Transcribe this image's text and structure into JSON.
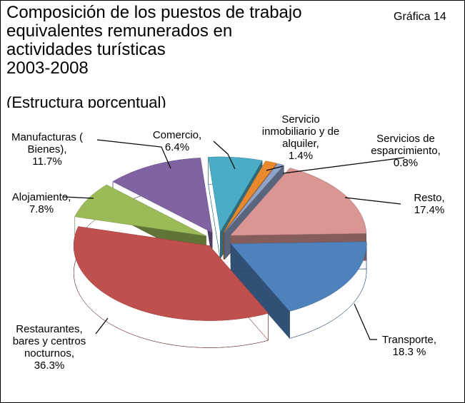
{
  "chart_data": {
    "type": "pie",
    "title": "Composición de los puestos de trabajo equivalentes remunerados en actividades turísticas",
    "subtitle": "2003-2008",
    "note": "(Estructura porcentual)",
    "figure_label": "Gráfica 14",
    "categories": [
      "Servicio inmobiliario y de alquiler,",
      "Servicios de esparcimiento,",
      "Resto,",
      "Transporte,",
      "Restaurantes, bares y centros nocturnos,",
      "Alojamiento,",
      "Manufacturas ( Bienes),",
      "Comercio,"
    ],
    "values": [
      1.4,
      0.8,
      17.4,
      18.3,
      36.3,
      7.8,
      11.7,
      6.4
    ],
    "value_labels": [
      "1.4%",
      "0.8%",
      "17.4%",
      "18.3 %",
      "36.3%",
      "7.8%",
      "11.7%",
      "6.4%"
    ],
    "colors": [
      "#e8892e",
      "#8fa2c9",
      "#d99694",
      "#4f81bd",
      "#c0504d",
      "#9bbb59",
      "#8064a2",
      "#4bacc6"
    ]
  }
}
